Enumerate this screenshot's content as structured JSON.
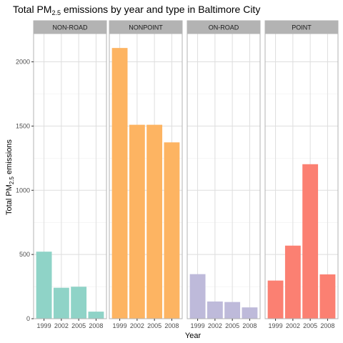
{
  "chart_data": {
    "type": "bar",
    "title": {
      "prefix": "Total PM",
      "subscript": "2.5",
      "suffix": " emissions by year and type in Baltimore City"
    },
    "xlabel": "Year",
    "ylabel": {
      "prefix": "Total PM",
      "subscript": "2.5",
      "suffix": " emissions"
    },
    "ylim": [
      0,
      2220
    ],
    "yticks": [
      0,
      500,
      1000,
      1500,
      2000
    ],
    "categories": [
      "1999",
      "2002",
      "2005",
      "2008"
    ],
    "grid": true,
    "legend": "none",
    "panels": [
      {
        "name": "NON-ROAD",
        "color": "#8fd3c7",
        "values": [
          522,
          241,
          249,
          55
        ]
      },
      {
        "name": "NONPOINT",
        "color": "#fdb462",
        "values": [
          2108,
          1510,
          1510,
          1373
        ]
      },
      {
        "name": "ON-ROAD",
        "color": "#bebada",
        "values": [
          347,
          134,
          130,
          88
        ]
      },
      {
        "name": "POINT",
        "color": "#fb8072",
        "values": [
          297,
          569,
          1203,
          345
        ]
      }
    ]
  }
}
